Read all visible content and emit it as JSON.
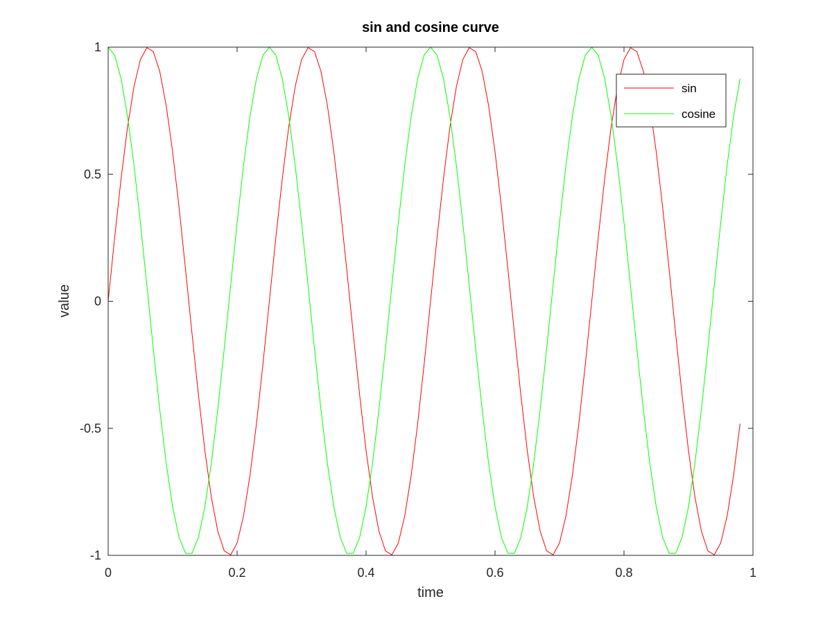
{
  "chart_data": {
    "type": "line",
    "title": "sin and cosine curve",
    "xlabel": "time",
    "ylabel": "value",
    "xlim": [
      0,
      1
    ],
    "ylim": [
      -1,
      1
    ],
    "xticks": [
      0,
      0.2,
      0.4,
      0.6,
      0.8,
      1
    ],
    "xtick_labels": [
      "0",
      "0.2",
      "0.4",
      "0.6",
      "0.8",
      "1"
    ],
    "yticks": [
      -1,
      -0.5,
      0,
      0.5,
      1
    ],
    "ytick_labels": [
      "-1",
      "-0.5",
      "0",
      "0.5",
      "1"
    ],
    "grid": false,
    "legend_position": "top-right",
    "x": [
      0,
      0.01,
      0.02,
      0.03,
      0.04,
      0.05,
      0.06,
      0.07,
      0.08,
      0.09,
      0.1,
      0.11,
      0.12,
      0.13,
      0.14,
      0.15,
      0.16,
      0.17,
      0.18,
      0.19,
      0.2,
      0.21,
      0.22,
      0.23,
      0.24,
      0.25,
      0.26,
      0.27,
      0.28,
      0.29,
      0.3,
      0.31,
      0.32,
      0.33,
      0.34,
      0.35,
      0.36,
      0.37,
      0.38,
      0.39,
      0.4,
      0.41,
      0.42,
      0.43,
      0.44,
      0.45,
      0.46,
      0.47,
      0.48,
      0.49,
      0.5,
      0.51,
      0.52,
      0.53,
      0.54,
      0.55,
      0.56,
      0.57,
      0.58,
      0.59,
      0.6,
      0.61,
      0.62,
      0.63,
      0.64,
      0.65,
      0.66,
      0.67,
      0.68,
      0.69,
      0.7,
      0.71,
      0.72,
      0.73,
      0.74,
      0.75,
      0.76,
      0.77,
      0.78,
      0.79,
      0.8,
      0.81,
      0.82,
      0.83,
      0.84,
      0.85,
      0.86,
      0.87,
      0.88,
      0.89,
      0.9,
      0.91,
      0.92,
      0.93,
      0.94,
      0.95,
      0.96,
      0.97,
      0.98
    ],
    "series": [
      {
        "name": "sin",
        "color": "#ff0000",
        "values": [
          0,
          0.2487,
          0.4818,
          0.6845,
          0.8443,
          0.9511,
          0.998,
          0.9823,
          0.9048,
          0.7705,
          0.5878,
          0.3681,
          0.1253,
          -0.1253,
          -0.3681,
          -0.5878,
          -0.7705,
          -0.9048,
          -0.9823,
          -0.998,
          -0.9511,
          -0.8443,
          -0.6845,
          -0.4818,
          -0.2487,
          0,
          0.2487,
          0.4818,
          0.6845,
          0.8443,
          0.9511,
          0.998,
          0.9823,
          0.9048,
          0.7705,
          0.5878,
          0.3681,
          0.1253,
          -0.1253,
          -0.3681,
          -0.5878,
          -0.7705,
          -0.9048,
          -0.9823,
          -0.998,
          -0.9511,
          -0.8443,
          -0.6845,
          -0.4818,
          -0.2487,
          0,
          0.2487,
          0.4818,
          0.6845,
          0.8443,
          0.9511,
          0.998,
          0.9823,
          0.9048,
          0.7705,
          0.5878,
          0.3681,
          0.1253,
          -0.1253,
          -0.3681,
          -0.5878,
          -0.7705,
          -0.9048,
          -0.9823,
          -0.998,
          -0.9511,
          -0.8443,
          -0.6845,
          -0.4818,
          -0.2487,
          0,
          0.2487,
          0.4818,
          0.6845,
          0.8443,
          0.9511,
          0.998,
          0.9823,
          0.9048,
          0.7705,
          0.5878,
          0.3681,
          0.1253,
          -0.1253,
          -0.3681,
          -0.5878,
          -0.7705,
          -0.9048,
          -0.9823,
          -0.998,
          -0.9511,
          -0.8443,
          -0.6845,
          -0.4818
        ]
      },
      {
        "name": "cosine",
        "color": "#00ff00",
        "values": [
          1,
          0.9686,
          0.8763,
          0.729,
          0.5358,
          0.309,
          0.0628,
          -0.1874,
          -0.4258,
          -0.6374,
          -0.809,
          -0.9298,
          -0.9921,
          -0.9921,
          -0.9298,
          -0.809,
          -0.6374,
          -0.4258,
          -0.1874,
          0.0628,
          0.309,
          0.5358,
          0.729,
          0.8763,
          0.9686,
          1,
          0.9686,
          0.8763,
          0.729,
          0.5358,
          0.309,
          0.0628,
          -0.1874,
          -0.4258,
          -0.6374,
          -0.809,
          -0.9298,
          -0.9921,
          -0.9921,
          -0.9298,
          -0.809,
          -0.6374,
          -0.4258,
          -0.1874,
          0.0628,
          0.309,
          0.5358,
          0.729,
          0.8763,
          0.9686,
          1,
          0.9686,
          0.8763,
          0.729,
          0.5358,
          0.309,
          0.0628,
          -0.1874,
          -0.4258,
          -0.6374,
          -0.809,
          -0.9298,
          -0.9921,
          -0.9921,
          -0.9298,
          -0.809,
          -0.6374,
          -0.4258,
          -0.1874,
          0.0628,
          0.309,
          0.5358,
          0.729,
          0.8763,
          0.9686,
          1,
          0.9686,
          0.8763,
          0.729,
          0.5358,
          0.309,
          0.0628,
          -0.1874,
          -0.4258,
          -0.6374,
          -0.809,
          -0.9298,
          -0.9921,
          -0.9921,
          -0.9298,
          -0.809,
          -0.6374,
          -0.4258,
          -0.1874,
          0.0628,
          0.309,
          0.5358,
          0.729,
          0.8763
        ]
      }
    ]
  }
}
